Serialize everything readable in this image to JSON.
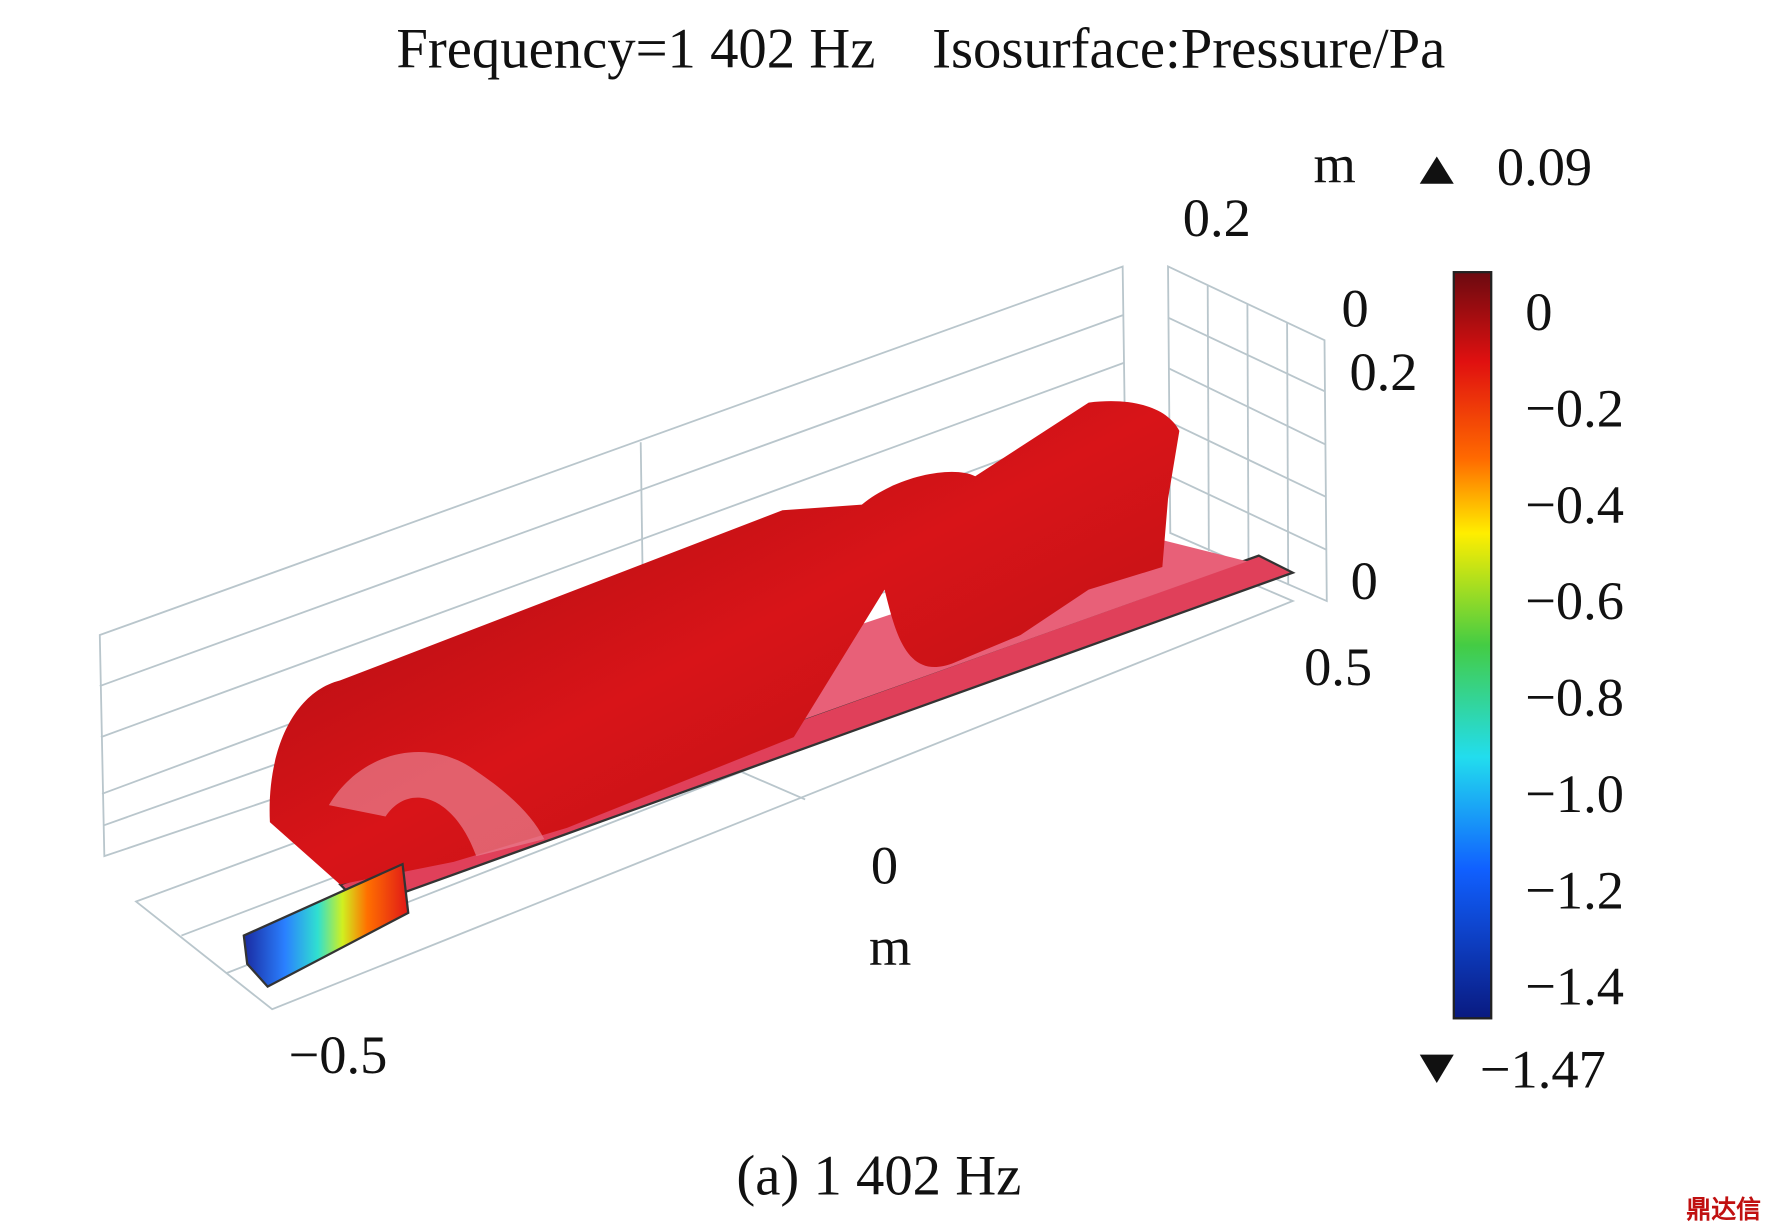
{
  "title": {
    "frequency": "Frequency=1 402 Hz",
    "quantity": "Isosurface:Pressure/Pa"
  },
  "axes": {
    "z_unit": "m",
    "z_top": "0.2",
    "z_zero": "0",
    "y_top": "0.2",
    "y_zero": "0",
    "x_right": "0.5",
    "x_zero": "0",
    "x_unit": "m",
    "x_left": "−0.5"
  },
  "colorbar": {
    "max": "0.09",
    "ticks": [
      "0",
      "−0.2",
      "−0.4",
      "−0.6",
      "−0.8",
      "−1.0",
      "−1.2",
      "−1.4"
    ],
    "min": "−1.47"
  },
  "caption": "(a) 1 402 Hz",
  "watermark": "鼎达信"
}
